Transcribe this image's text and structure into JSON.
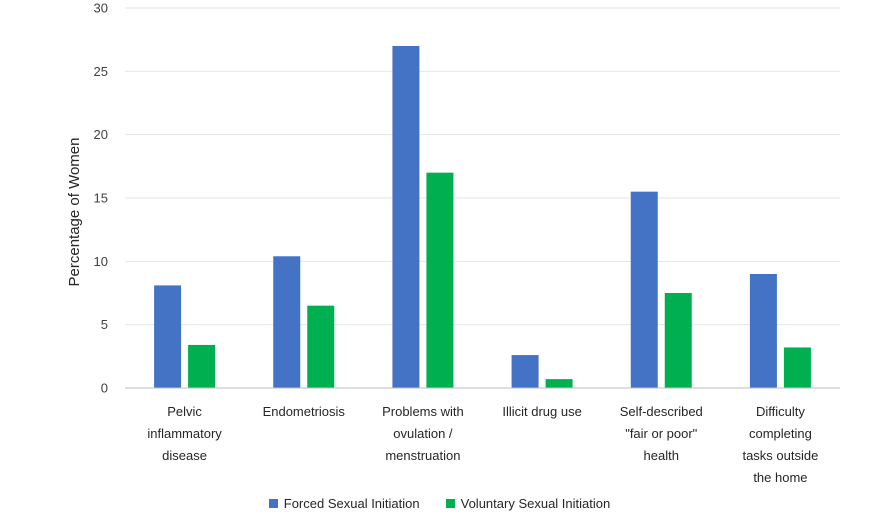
{
  "chart_data": {
    "type": "bar",
    "ylabel": "Percentage of Women",
    "ylim": [
      0,
      30
    ],
    "yticks": [
      0,
      5,
      10,
      15,
      20,
      25,
      30
    ],
    "grid": true,
    "legend_position": "bottom",
    "categories": [
      [
        "Pelvic",
        "inflammatory",
        "disease"
      ],
      [
        "Endometriosis"
      ],
      [
        "Problems with",
        "ovulation /",
        "menstruation"
      ],
      [
        "Illicit drug use"
      ],
      [
        "Self-described",
        "\"fair or poor\"",
        "health"
      ],
      [
        "Difficulty",
        "completing",
        "tasks outside",
        "the home"
      ]
    ],
    "series": [
      {
        "name": "Forced Sexual Initiation",
        "color": "#4472C4",
        "values": [
          8.1,
          10.4,
          27.0,
          2.6,
          15.5,
          9.0
        ]
      },
      {
        "name": "Voluntary Sexual Initiation",
        "color": "#00B050",
        "values": [
          3.4,
          6.5,
          17.0,
          0.7,
          7.5,
          3.2
        ]
      }
    ]
  }
}
